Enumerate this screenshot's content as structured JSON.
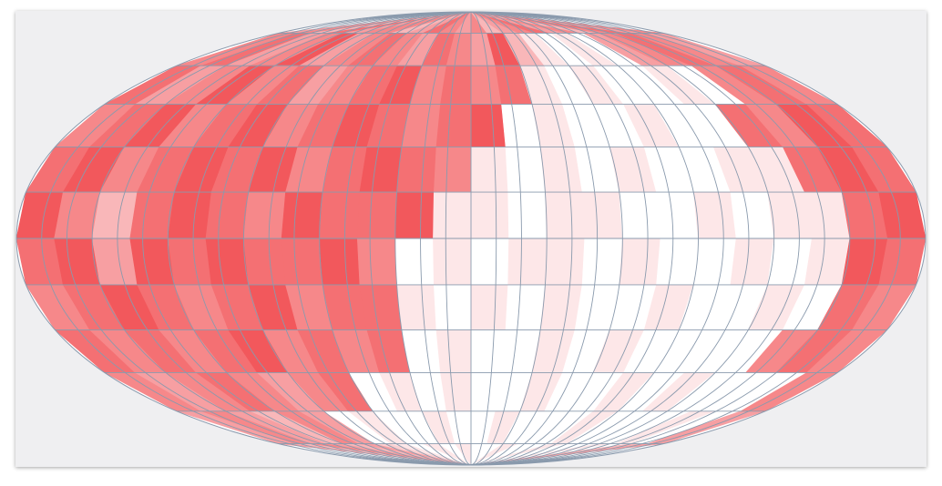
{
  "map": {
    "projection": "mollweide",
    "graticule": {
      "meridian_step": 10,
      "parallel_step": 15,
      "color": "#8a9aad"
    },
    "color_low": "#ffffff",
    "color_high": "#ee282d",
    "intensity_max": 9,
    "intensity": [
      [
        4,
        5,
        3,
        6,
        4,
        5,
        5,
        3,
        4,
        6,
        5,
        4,
        5,
        3,
        4,
        5,
        6,
        4,
        5,
        3,
        5,
        6,
        4,
        5
      ],
      [
        5,
        6,
        4,
        5,
        7,
        4,
        5,
        6,
        5,
        4,
        6,
        5,
        4,
        7,
        3,
        1,
        0,
        1,
        0,
        4,
        5,
        6,
        5,
        4
      ],
      [
        6,
        4,
        5,
        7,
        5,
        6,
        4,
        5,
        6,
        7,
        5,
        6,
        5,
        6,
        1,
        0,
        1,
        0,
        0,
        1,
        0,
        5,
        6,
        5
      ],
      [
        5,
        6,
        7,
        5,
        6,
        7,
        5,
        6,
        7,
        6,
        5,
        6,
        7,
        0,
        1,
        0,
        0,
        1,
        0,
        0,
        6,
        5,
        7,
        6
      ],
      [
        6,
        7,
        5,
        6,
        7,
        6,
        7,
        5,
        6,
        7,
        6,
        5,
        1,
        0,
        1,
        0,
        1,
        0,
        0,
        1,
        1,
        6,
        7,
        6
      ],
      [
        7,
        5,
        3,
        6,
        7,
        6,
        5,
        7,
        6,
        6,
        7,
        1,
        1,
        0,
        1,
        1,
        0,
        0,
        1,
        0,
        1,
        1,
        6,
        7
      ],
      [
        6,
        7,
        4,
        7,
        6,
        7,
        6,
        6,
        7,
        5,
        0,
        1,
        0,
        1,
        1,
        0,
        1,
        0,
        0,
        1,
        0,
        1,
        7,
        6
      ],
      [
        5,
        6,
        7,
        6,
        5,
        6,
        7,
        5,
        6,
        6,
        1,
        0,
        1,
        0,
        1,
        0,
        0,
        1,
        0,
        0,
        1,
        0,
        6,
        5
      ],
      [
        6,
        5,
        6,
        5,
        6,
        7,
        5,
        6,
        5,
        6,
        0,
        1,
        0,
        0,
        1,
        0,
        1,
        0,
        0,
        0,
        0,
        5,
        6,
        5
      ],
      [
        5,
        4,
        5,
        6,
        5,
        4,
        5,
        6,
        0,
        1,
        0,
        1,
        0,
        0,
        1,
        0,
        0,
        1,
        0,
        1,
        0,
        0,
        0,
        5
      ],
      [
        4,
        5,
        4,
        3,
        5,
        4,
        0,
        1,
        0,
        0,
        1,
        0,
        0,
        1,
        0,
        0,
        0,
        1,
        0,
        0,
        0,
        1,
        0,
        4
      ],
      [
        4,
        3,
        5,
        4,
        3,
        4,
        2,
        1,
        0,
        1,
        0,
        1,
        0,
        0,
        1,
        0,
        0,
        1,
        0,
        0,
        1,
        0,
        3,
        4
      ]
    ]
  }
}
